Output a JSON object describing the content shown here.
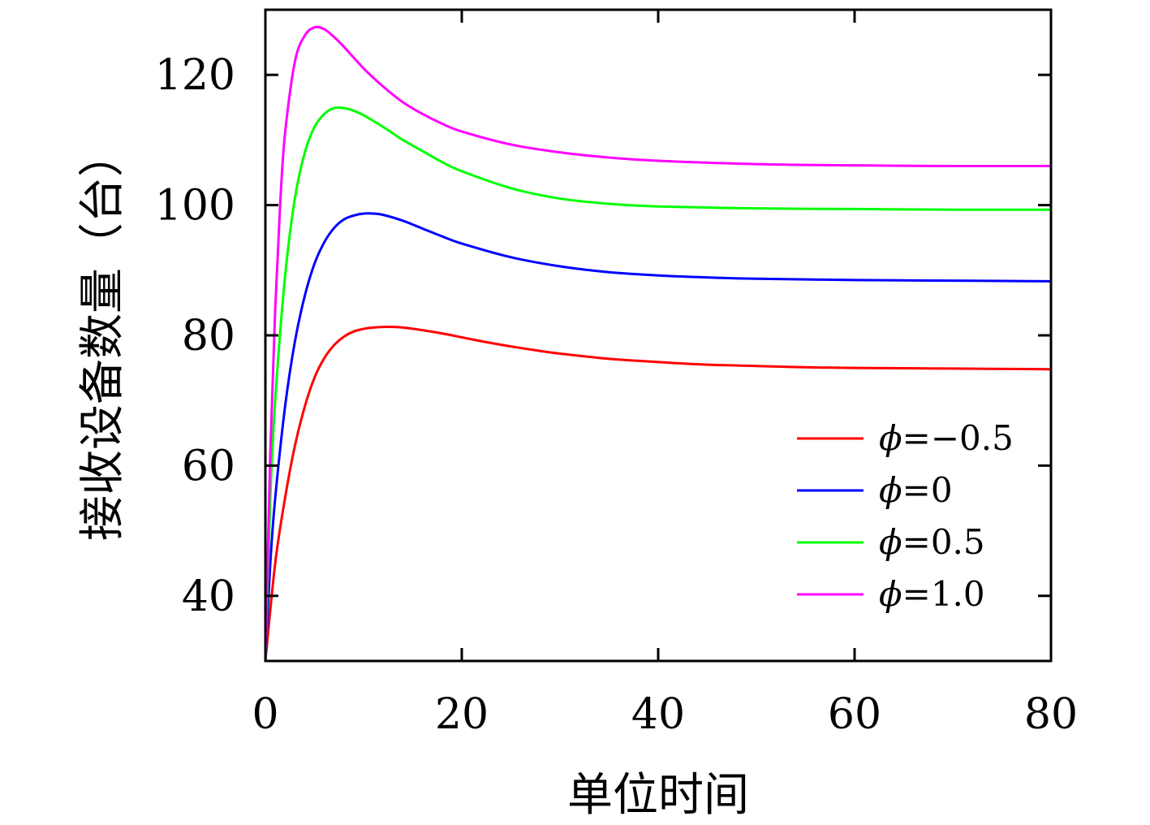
{
  "chart_data": {
    "type": "line",
    "title": "",
    "xlabel": "单位时间",
    "ylabel": "接收设备数量（台）",
    "xlim": [
      0,
      80
    ],
    "ylim": [
      30,
      130
    ],
    "x_ticks": [
      "0",
      "20",
      "40",
      "60",
      "80"
    ],
    "y_ticks": [
      "40",
      "60",
      "80",
      "100",
      "120"
    ],
    "grid": false,
    "legend_position": "lower-right",
    "series": [
      {
        "name": "ϕ=−0.5",
        "phi_symbol": "ϕ",
        "phi_value": "=−0.5",
        "color": "#ff0000",
        "points": [
          [
            0,
            30
          ],
          [
            1,
            45
          ],
          [
            2,
            55
          ],
          [
            3,
            63
          ],
          [
            4,
            69
          ],
          [
            5,
            73.5
          ],
          [
            6,
            76.5
          ],
          [
            7,
            78.5
          ],
          [
            8,
            79.8
          ],
          [
            9,
            80.6
          ],
          [
            10,
            81
          ],
          [
            11,
            81.2
          ],
          [
            12,
            81.3
          ],
          [
            13,
            81.3
          ],
          [
            14,
            81.2
          ],
          [
            16,
            80.8
          ],
          [
            18,
            80.3
          ],
          [
            20,
            79.7
          ],
          [
            22,
            79.1
          ],
          [
            25,
            78.3
          ],
          [
            28,
            77.6
          ],
          [
            30,
            77.2
          ],
          [
            35,
            76.4
          ],
          [
            40,
            75.9
          ],
          [
            45,
            75.5
          ],
          [
            50,
            75.3
          ],
          [
            55,
            75.1
          ],
          [
            60,
            75
          ],
          [
            70,
            74.9
          ],
          [
            80,
            74.8
          ]
        ]
      },
      {
        "name": "ϕ=0",
        "phi_symbol": "ϕ",
        "phi_value": "=0",
        "color": "#0000ff",
        "points": [
          [
            0,
            30
          ],
          [
            0.5,
            45
          ],
          [
            1,
            55
          ],
          [
            2,
            69
          ],
          [
            3,
            79
          ],
          [
            4,
            86
          ],
          [
            5,
            91
          ],
          [
            6,
            94.3
          ],
          [
            7,
            96.5
          ],
          [
            8,
            97.8
          ],
          [
            9,
            98.4
          ],
          [
            10,
            98.7
          ],
          [
            11,
            98.7
          ],
          [
            12,
            98.5
          ],
          [
            14,
            97.6
          ],
          [
            16,
            96.4
          ],
          [
            18,
            95.2
          ],
          [
            20,
            94.1
          ],
          [
            25,
            92
          ],
          [
            30,
            90.6
          ],
          [
            35,
            89.7
          ],
          [
            40,
            89.2
          ],
          [
            45,
            88.9
          ],
          [
            50,
            88.7
          ],
          [
            60,
            88.5
          ],
          [
            70,
            88.4
          ],
          [
            80,
            88.3
          ]
        ]
      },
      {
        "name": "ϕ=0.5",
        "phi_symbol": "ϕ",
        "phi_value": "=0.5",
        "color": "#00ff00",
        "points": [
          [
            0,
            30
          ],
          [
            0.5,
            55
          ],
          [
            1,
            70
          ],
          [
            2,
            89
          ],
          [
            3,
            101
          ],
          [
            4,
            108
          ],
          [
            5,
            112
          ],
          [
            6,
            114
          ],
          [
            7,
            114.9
          ],
          [
            8,
            114.9
          ],
          [
            9,
            114.5
          ],
          [
            10,
            113.8
          ],
          [
            12,
            112
          ],
          [
            14,
            110
          ],
          [
            16,
            108.3
          ],
          [
            18,
            106.6
          ],
          [
            20,
            105.2
          ],
          [
            25,
            102.6
          ],
          [
            30,
            101
          ],
          [
            35,
            100.2
          ],
          [
            40,
            99.8
          ],
          [
            50,
            99.5
          ],
          [
            60,
            99.4
          ],
          [
            70,
            99.3
          ],
          [
            80,
            99.3
          ]
        ]
      },
      {
        "name": "ϕ=1.0",
        "phi_symbol": "ϕ",
        "phi_value": "=1.0",
        "color": "#ff00ff",
        "points": [
          [
            0,
            30
          ],
          [
            0.5,
            62
          ],
          [
            1,
            84
          ],
          [
            1.5,
            100
          ],
          [
            2,
            111
          ],
          [
            3,
            122
          ],
          [
            4,
            126
          ],
          [
            5,
            127.3
          ],
          [
            6,
            127
          ],
          [
            7,
            125.8
          ],
          [
            8,
            124.3
          ],
          [
            10,
            121
          ],
          [
            12,
            118.2
          ],
          [
            14,
            115.8
          ],
          [
            16,
            114
          ],
          [
            18,
            112.5
          ],
          [
            20,
            111.3
          ],
          [
            25,
            109.3
          ],
          [
            30,
            108.1
          ],
          [
            35,
            107.3
          ],
          [
            40,
            106.8
          ],
          [
            50,
            106.3
          ],
          [
            60,
            106.1
          ],
          [
            70,
            106
          ],
          [
            80,
            106
          ]
        ]
      }
    ]
  }
}
